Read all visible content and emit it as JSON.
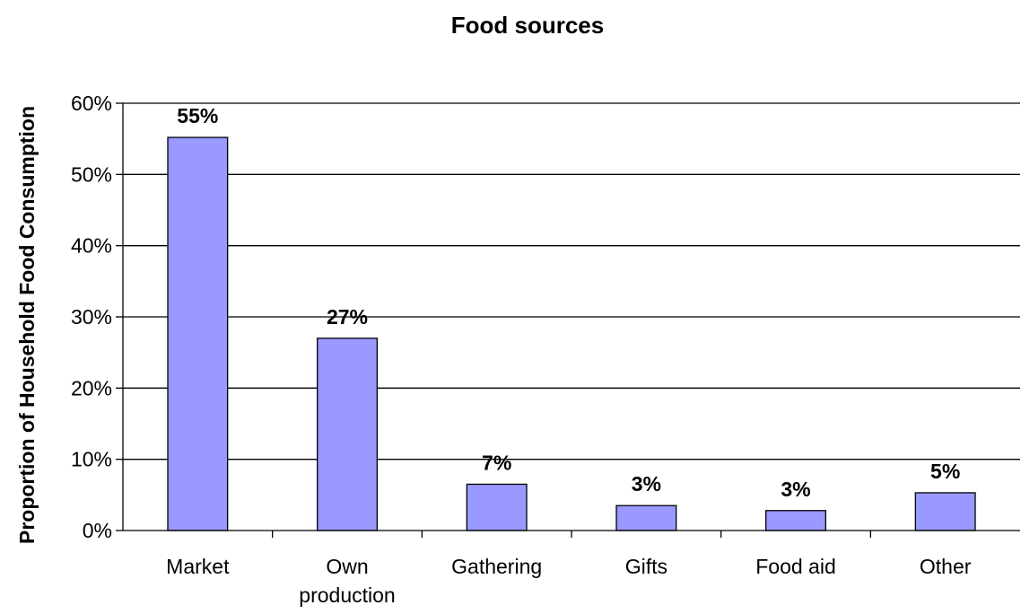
{
  "chart_data": {
    "type": "bar",
    "title": "Food sources",
    "xlabel": "",
    "ylabel": "Proportion of Household Food Consumption",
    "categories": [
      "Market",
      "Own production",
      "Gathering",
      "Gifts",
      "Food aid",
      "Other"
    ],
    "category_lines": [
      [
        "Market"
      ],
      [
        "Own",
        "production"
      ],
      [
        "Gathering"
      ],
      [
        "Gifts"
      ],
      [
        "Food aid"
      ],
      [
        "Other"
      ]
    ],
    "values": [
      55.2,
      27.0,
      6.5,
      3.5,
      2.8,
      5.3
    ],
    "data_labels": [
      "55%",
      "27%",
      "7%",
      "3%",
      "3%",
      "5%"
    ],
    "ylim": [
      0,
      60
    ],
    "yticks": [
      0,
      10,
      20,
      30,
      40,
      50,
      60
    ],
    "ytick_labels": [
      "0%",
      "10%",
      "20%",
      "30%",
      "40%",
      "50%",
      "60%"
    ],
    "grid": true,
    "legend": "none",
    "bar_color": "#9999ff",
    "bar_edge_color": "#000000"
  }
}
